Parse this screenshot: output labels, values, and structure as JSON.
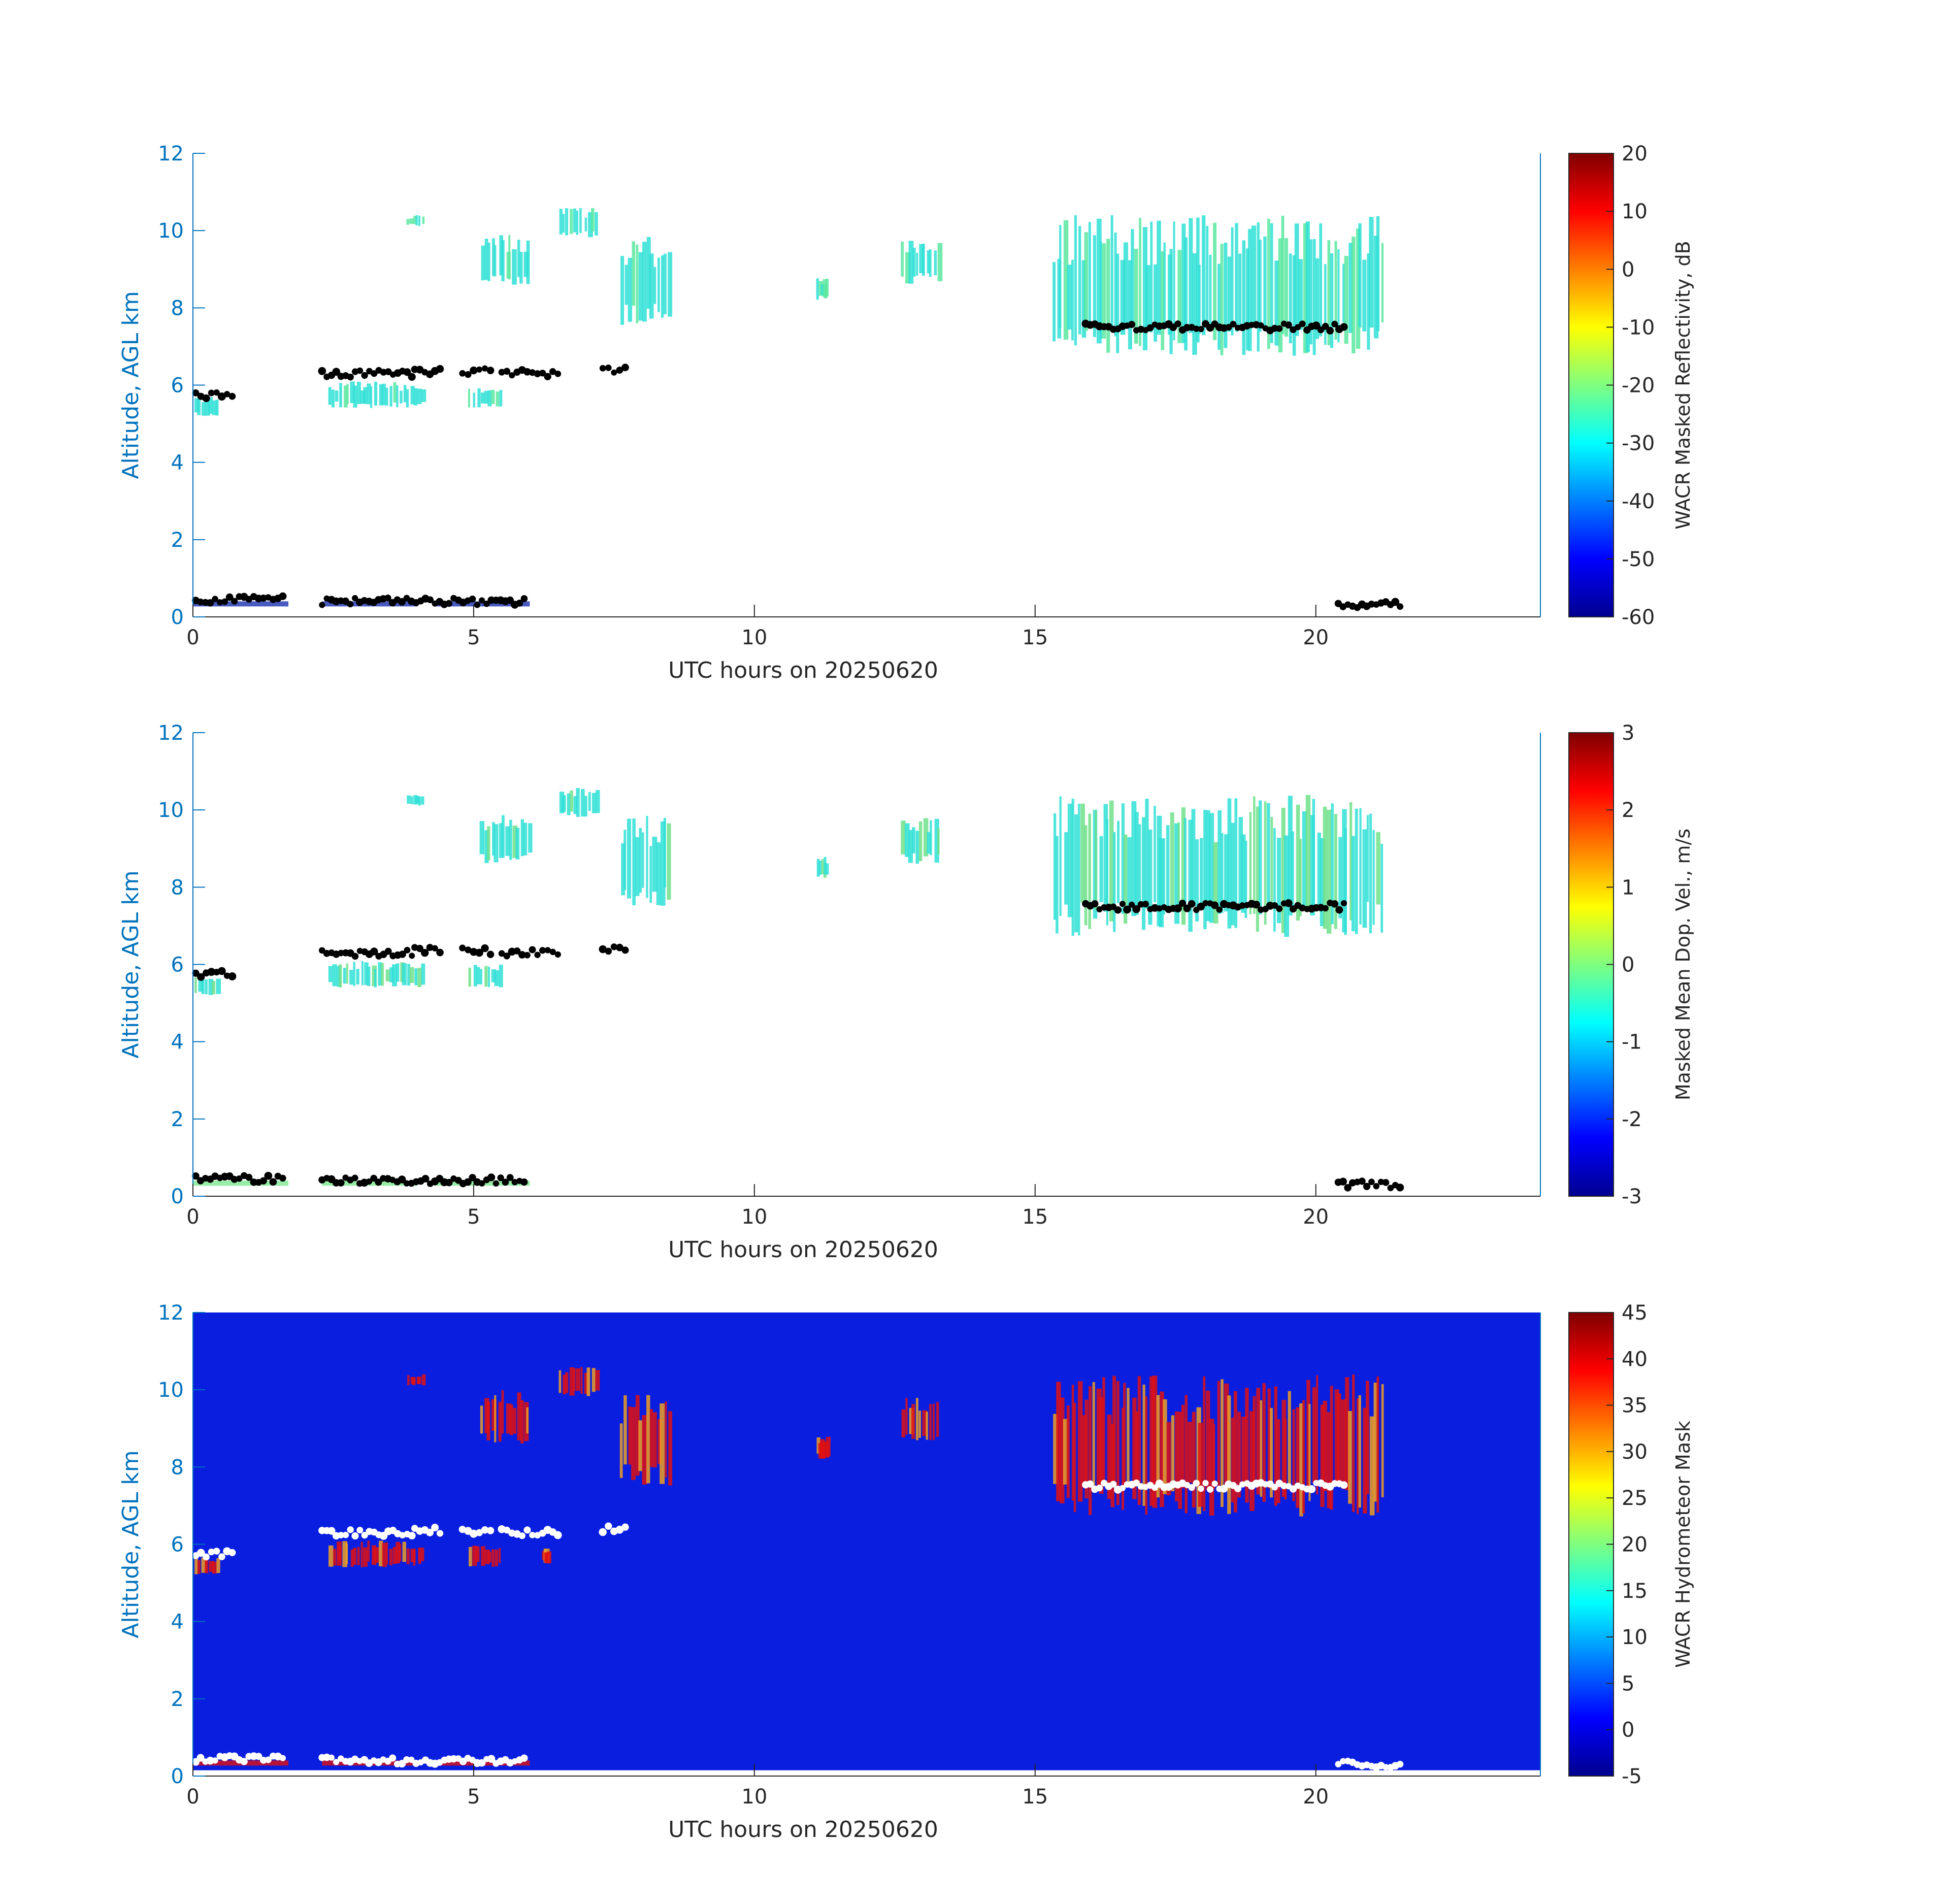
{
  "chart_data": [
    {
      "type": "heatmap",
      "xlabel": "UTC hours on 20250620",
      "ylabel": "Altitude, AGL km",
      "xlim": [
        0,
        24
      ],
      "ylim": [
        0,
        12
      ],
      "xticks": [
        0,
        5,
        10,
        15,
        20
      ],
      "yticks": [
        0,
        2,
        4,
        6,
        8,
        10,
        12
      ],
      "background": "none",
      "colorbar": {
        "label": "WACR Masked Reflectivity, dB",
        "range": [
          -60,
          20
        ],
        "ticks": [
          20,
          10,
          0,
          -10,
          -20,
          -30,
          -40,
          -50,
          -60
        ]
      },
      "cloud_color": "#2ee0d6",
      "cloud_alt_color": "#5be8a0",
      "clouds": [
        {
          "t0": 0.0,
          "t1": 0.45,
          "z0": 5.2,
          "z1": 5.7
        },
        {
          "t0": 2.4,
          "t1": 4.1,
          "z0": 5.4,
          "z1": 6.1
        },
        {
          "t0": 4.9,
          "t1": 5.5,
          "z0": 5.4,
          "z1": 6.0
        },
        {
          "t0": 3.8,
          "t1": 4.1,
          "z0": 10.1,
          "z1": 10.4
        },
        {
          "t0": 5.1,
          "t1": 6.0,
          "z0": 8.6,
          "z1": 9.9
        },
        {
          "t0": 6.5,
          "t1": 7.2,
          "z0": 9.8,
          "z1": 10.6
        },
        {
          "t0": 7.6,
          "t1": 8.5,
          "z0": 7.5,
          "z1": 9.9
        },
        {
          "t0": 11.1,
          "t1": 11.3,
          "z0": 8.2,
          "z1": 8.8
        },
        {
          "t0": 12.6,
          "t1": 13.3,
          "z0": 8.6,
          "z1": 9.8
        },
        {
          "t0": 15.3,
          "t1": 21.2,
          "z0": 6.7,
          "z1": 10.4
        }
      ],
      "boundary_layer": {
        "color": "#1a2fb0",
        "segments": [
          [
            0.0,
            1.7
          ],
          [
            2.3,
            4.0
          ],
          [
            4.3,
            6.0
          ]
        ],
        "z": 0.35
      },
      "markers": {
        "color": "#000000",
        "clusters": [
          {
            "t0": 0.05,
            "t1": 0.7,
            "z": 5.75
          },
          {
            "t0": 2.3,
            "t1": 3.9,
            "z": 6.3
          },
          {
            "t0": 3.95,
            "t1": 4.4,
            "z": 6.35
          },
          {
            "t0": 4.8,
            "t1": 5.3,
            "z": 6.35
          },
          {
            "t0": 5.5,
            "t1": 6.5,
            "z": 6.3
          },
          {
            "t0": 7.3,
            "t1": 7.7,
            "z": 6.4
          },
          {
            "t0": 0.05,
            "t1": 1.6,
            "z": 0.45
          },
          {
            "t0": 2.3,
            "t1": 5.9,
            "z": 0.4
          },
          {
            "t0": 15.9,
            "t1": 20.5,
            "z": 7.5
          },
          {
            "t0": 20.4,
            "t1": 21.5,
            "z": 0.3
          }
        ]
      }
    },
    {
      "type": "heatmap",
      "xlabel": "UTC hours on 20250620",
      "ylabel": "Altitude, AGL km",
      "xlim": [
        0,
        24
      ],
      "ylim": [
        0,
        12
      ],
      "xticks": [
        0,
        5,
        10,
        15,
        20
      ],
      "yticks": [
        0,
        2,
        4,
        6,
        8,
        10,
        12
      ],
      "background": "none",
      "colorbar": {
        "label": "Masked Mean Dop. Vel., m/s",
        "range": [
          -3,
          3
        ],
        "ticks": [
          3,
          2,
          1,
          0,
          -1,
          -2,
          -3
        ]
      },
      "cloud_color": "#2ee0d6",
      "cloud_alt_color": "#6fe08a",
      "clouds": [
        {
          "t0": 0.0,
          "t1": 0.45,
          "z0": 5.2,
          "z1": 5.7
        },
        {
          "t0": 2.4,
          "t1": 4.1,
          "z0": 5.4,
          "z1": 6.1
        },
        {
          "t0": 4.9,
          "t1": 5.5,
          "z0": 5.4,
          "z1": 6.0
        },
        {
          "t0": 3.8,
          "t1": 4.1,
          "z0": 10.1,
          "z1": 10.4
        },
        {
          "t0": 5.1,
          "t1": 6.0,
          "z0": 8.6,
          "z1": 9.9
        },
        {
          "t0": 6.5,
          "t1": 7.2,
          "z0": 9.8,
          "z1": 10.6
        },
        {
          "t0": 7.6,
          "t1": 8.5,
          "z0": 7.5,
          "z1": 9.9
        },
        {
          "t0": 11.1,
          "t1": 11.3,
          "z0": 8.2,
          "z1": 8.8
        },
        {
          "t0": 12.6,
          "t1": 13.3,
          "z0": 8.6,
          "z1": 9.8
        },
        {
          "t0": 15.3,
          "t1": 21.2,
          "z0": 6.7,
          "z1": 10.4
        }
      ],
      "boundary_layer": {
        "color": "#7de890",
        "segments": [
          [
            0.0,
            1.7
          ],
          [
            2.3,
            4.0
          ],
          [
            4.3,
            6.0
          ]
        ],
        "z": 0.35
      },
      "markers": {
        "color": "#000000",
        "clusters": [
          {
            "t0": 0.05,
            "t1": 0.7,
            "z": 5.75
          },
          {
            "t0": 2.3,
            "t1": 3.9,
            "z": 6.3
          },
          {
            "t0": 3.95,
            "t1": 4.4,
            "z": 6.35
          },
          {
            "t0": 4.8,
            "t1": 5.3,
            "z": 6.35
          },
          {
            "t0": 5.5,
            "t1": 6.5,
            "z": 6.3
          },
          {
            "t0": 7.3,
            "t1": 7.7,
            "z": 6.4
          },
          {
            "t0": 0.05,
            "t1": 1.6,
            "z": 0.45
          },
          {
            "t0": 2.3,
            "t1": 5.9,
            "z": 0.4
          },
          {
            "t0": 15.9,
            "t1": 20.5,
            "z": 7.5
          },
          {
            "t0": 20.4,
            "t1": 21.5,
            "z": 0.3
          }
        ]
      }
    },
    {
      "type": "heatmap",
      "xlabel": "UTC hours on 20250620",
      "ylabel": "Altitude, AGL km",
      "xlim": [
        0,
        24
      ],
      "ylim": [
        0,
        12
      ],
      "xticks": [
        0,
        5,
        10,
        15,
        20
      ],
      "yticks": [
        0,
        2,
        4,
        6,
        8,
        10,
        12
      ],
      "background": "#0a1ee0",
      "background_zmin": 0.15,
      "colorbar": {
        "label": "WACR Hydrometeor Mask",
        "range": [
          -5,
          45
        ],
        "ticks": [
          45,
          40,
          35,
          30,
          25,
          20,
          15,
          10,
          5,
          0,
          -5
        ]
      },
      "cloud_color": "#e01010",
      "cloud_alt_color": "#f0a020",
      "clouds": [
        {
          "t0": 0.0,
          "t1": 0.45,
          "z0": 5.2,
          "z1": 5.7
        },
        {
          "t0": 2.4,
          "t1": 4.1,
          "z0": 5.4,
          "z1": 6.1
        },
        {
          "t0": 4.9,
          "t1": 5.5,
          "z0": 5.4,
          "z1": 6.0
        },
        {
          "t0": 6.2,
          "t1": 6.3,
          "z0": 5.5,
          "z1": 5.9
        },
        {
          "t0": 3.8,
          "t1": 4.1,
          "z0": 10.1,
          "z1": 10.4
        },
        {
          "t0": 5.1,
          "t1": 6.0,
          "z0": 8.6,
          "z1": 10.0
        },
        {
          "t0": 6.5,
          "t1": 7.2,
          "z0": 9.8,
          "z1": 10.6
        },
        {
          "t0": 7.6,
          "t1": 8.5,
          "z0": 7.5,
          "z1": 9.9
        },
        {
          "t0": 11.1,
          "t1": 11.3,
          "z0": 8.2,
          "z1": 8.8
        },
        {
          "t0": 12.6,
          "t1": 13.3,
          "z0": 8.6,
          "z1": 9.8
        },
        {
          "t0": 15.3,
          "t1": 21.2,
          "z0": 6.7,
          "z1": 10.4
        }
      ],
      "boundary_layer": {
        "color": "#e01010",
        "segments": [
          [
            0.0,
            1.7
          ],
          [
            2.3,
            4.0
          ],
          [
            4.3,
            6.0
          ]
        ],
        "z": 0.35
      },
      "markers": {
        "color": "#ffffff",
        "clusters": [
          {
            "t0": 0.05,
            "t1": 0.7,
            "z": 5.75
          },
          {
            "t0": 2.3,
            "t1": 3.9,
            "z": 6.3
          },
          {
            "t0": 3.95,
            "t1": 4.4,
            "z": 6.35
          },
          {
            "t0": 4.8,
            "t1": 5.3,
            "z": 6.35
          },
          {
            "t0": 5.5,
            "t1": 6.5,
            "z": 6.3
          },
          {
            "t0": 7.3,
            "t1": 7.7,
            "z": 6.4
          },
          {
            "t0": 0.05,
            "t1": 1.6,
            "z": 0.45
          },
          {
            "t0": 2.3,
            "t1": 5.9,
            "z": 0.4
          },
          {
            "t0": 15.9,
            "t1": 20.5,
            "z": 7.5
          },
          {
            "t0": 20.4,
            "t1": 21.5,
            "z": 0.3
          }
        ]
      }
    }
  ]
}
